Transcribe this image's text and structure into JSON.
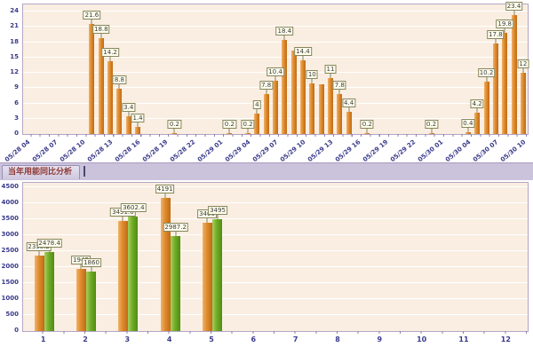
{
  "tab": {
    "label": "当年用能同比分析"
  },
  "colors": {
    "plot_bg": "#FAEEE2",
    "plot_border": "#B5A5C5",
    "grid_line": "#FFFFFF",
    "axis_text": "#3A3A8C",
    "orange_bar": "#DE8B2D",
    "green_bar": "#71AC27",
    "band_bg": "#CBC3DC",
    "tab_text": "#8C3832",
    "value_box_bg": "#FFFFEE",
    "value_box_border": "#85855C"
  },
  "chart_data": [
    {
      "type": "bar",
      "title": "",
      "xlabel": "",
      "ylabel": "",
      "grid": true,
      "legend": "none",
      "ylim": [
        0,
        25.4
      ],
      "yticks": [
        0,
        3,
        6,
        9,
        12,
        15,
        18,
        21,
        24
      ],
      "x_slots": 55,
      "xtick_labels": [
        "05/28 04",
        "05/28 07",
        "05/28 10",
        "05/28 13",
        "05/28 16",
        "05/28 19",
        "05/28 22",
        "05/29 01",
        "05/29 04",
        "05/29 07",
        "05/29 10",
        "05/29 13",
        "05/29 16",
        "05/29 19",
        "05/29 22",
        "05/30 01",
        "05/30 04",
        "05/30 07",
        "05/30 10"
      ],
      "bars": [
        {
          "hour": 7,
          "value": 21.6,
          "label": "21.6"
        },
        {
          "hour": 8,
          "value": 18.8,
          "label": "18.8"
        },
        {
          "hour": 9,
          "value": 14.2,
          "label": "14.2"
        },
        {
          "hour": 10,
          "value": 8.8,
          "label": "8.8"
        },
        {
          "hour": 11,
          "value": 3.4,
          "label": "3.4"
        },
        {
          "hour": 12,
          "value": 1.4,
          "label": "1.4"
        },
        {
          "hour": 16,
          "value": 0.2,
          "label": "0.2"
        },
        {
          "hour": 22,
          "value": 0.2,
          "label": "0.2"
        },
        {
          "hour": 24,
          "value": 0.2,
          "label": "0.2"
        },
        {
          "hour": 25,
          "value": 4,
          "label": "4"
        },
        {
          "hour": 26,
          "value": 7.8,
          "label": "7.8"
        },
        {
          "hour": 27,
          "value": 10.4,
          "label": "10.4"
        },
        {
          "hour": 28,
          "value": 18.4,
          "label": "18.4"
        },
        {
          "hour": 29,
          "value": 16.4,
          "label": ""
        },
        {
          "hour": 30,
          "value": 14.4,
          "label": "14.4"
        },
        {
          "hour": 31,
          "value": 10,
          "label": "10"
        },
        {
          "hour": 32,
          "value": 9.8,
          "label": ""
        },
        {
          "hour": 33,
          "value": 11,
          "label": "11"
        },
        {
          "hour": 34,
          "value": 7.8,
          "label": "7.8"
        },
        {
          "hour": 35,
          "value": 4.4,
          "label": "4.4"
        },
        {
          "hour": 37,
          "value": 0.2,
          "label": "0.2"
        },
        {
          "hour": 44,
          "value": 0.2,
          "label": "0.2"
        },
        {
          "hour": 48,
          "value": 0.4,
          "label": "0.4"
        },
        {
          "hour": 49,
          "value": 4.2,
          "label": "4.2"
        },
        {
          "hour": 50,
          "value": 10.2,
          "label": "10.2"
        },
        {
          "hour": 51,
          "value": 17.8,
          "label": "17.8"
        },
        {
          "hour": 52,
          "value": 19.8,
          "label": "19.8"
        },
        {
          "hour": 53,
          "value": 23.4,
          "label": "23.4"
        },
        {
          "hour": 54,
          "value": 12,
          "label": "12"
        }
      ]
    },
    {
      "type": "bar",
      "grouped": true,
      "title": "当年用能同比分析",
      "xlabel": "",
      "ylabel": "",
      "grid": true,
      "legend": "none",
      "ylim": [
        0,
        4650
      ],
      "yticks": [
        0,
        500,
        1000,
        1500,
        2000,
        2500,
        3000,
        3500,
        4000,
        4500
      ],
      "categories": [
        "1",
        "2",
        "3",
        "4",
        "5",
        "6",
        "7",
        "8",
        "9",
        "10",
        "11",
        "12"
      ],
      "series": [
        {
          "name": "orange-series",
          "color": "#DE8B2D",
          "values": [
            2358.2,
            1942,
            3451.6,
            4191,
            3406,
            null,
            null,
            null,
            null,
            null,
            null,
            null
          ]
        },
        {
          "name": "green-series",
          "color": "#71AC27",
          "values": [
            2478.4,
            1860,
            3602.4,
            2987.2,
            3495,
            null,
            null,
            null,
            null,
            null,
            null,
            null
          ]
        }
      ]
    }
  ]
}
